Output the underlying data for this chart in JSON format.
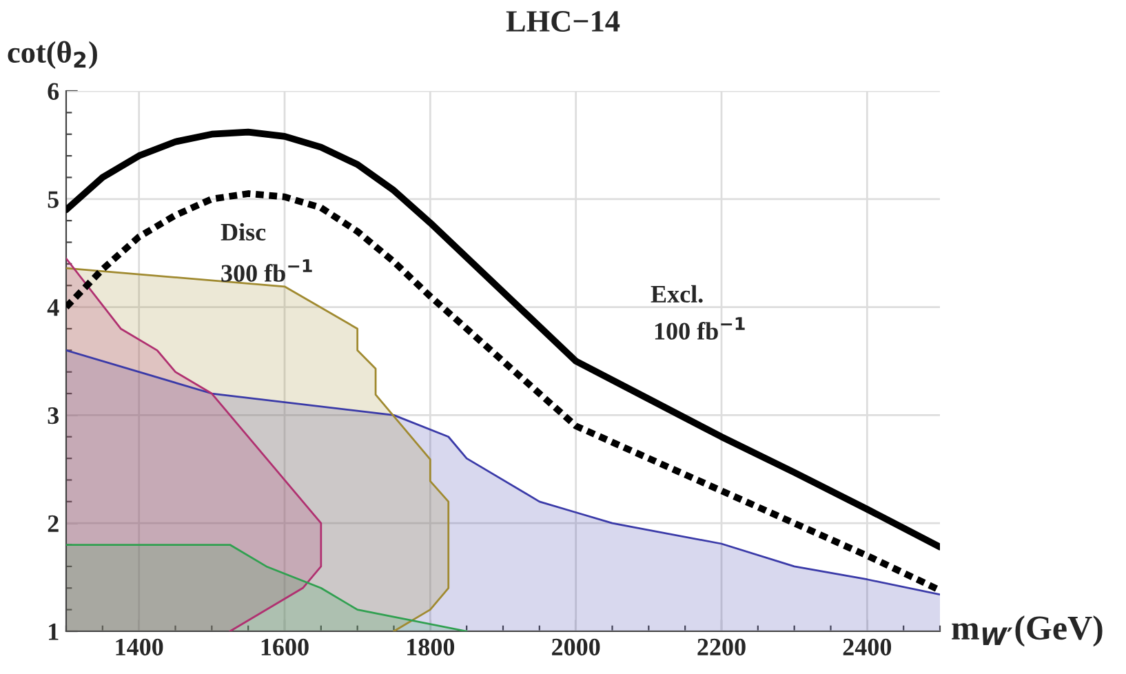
{
  "chart_data": {
    "type": "line",
    "title": "LHC−14",
    "xlabel": "m$_{W′}$(GeV)",
    "ylabel": "cot(θ$_{2}$)",
    "xlim": [
      1300,
      2500
    ],
    "ylim": [
      1,
      6
    ],
    "xticks": [
      {
        "value": 1300,
        "label": null
      },
      {
        "value": 1350,
        "label": null
      },
      1400,
      {
        "value": 1450,
        "label": null
      },
      {
        "value": 1500,
        "label": null
      },
      {
        "value": 1550,
        "label": null
      },
      1600,
      {
        "value": 1650,
        "label": null
      },
      {
        "value": 1700,
        "label": null
      },
      {
        "value": 1750,
        "label": null
      },
      1800,
      {
        "value": 1850,
        "label": null
      },
      {
        "value": 1900,
        "label": null
      },
      {
        "value": 1950,
        "label": null
      },
      2000,
      {
        "value": 2050,
        "label": null
      },
      {
        "value": 2100,
        "label": null
      },
      {
        "value": 2150,
        "label": null
      },
      2200,
      {
        "value": 2250,
        "label": null
      },
      {
        "value": 2300,
        "label": null
      },
      {
        "value": 2350,
        "label": null
      },
      2400,
      {
        "value": 2450,
        "label": null
      },
      {
        "value": 2500,
        "label": null
      }
    ],
    "yticks": [
      1,
      {
        "value": 1.2,
        "label": null
      },
      {
        "value": 1.4,
        "label": null
      },
      {
        "value": 1.6,
        "label": null
      },
      {
        "value": 1.8,
        "label": null
      },
      2,
      {
        "value": 2.2,
        "label": null
      },
      {
        "value": 2.4,
        "label": null
      },
      {
        "value": 2.6,
        "label": null
      },
      {
        "value": 2.8,
        "label": null
      },
      3,
      {
        "value": 3.2,
        "label": null
      },
      {
        "value": 3.4,
        "label": null
      },
      {
        "value": 3.6,
        "label": null
      },
      {
        "value": 3.8,
        "label": null
      },
      4,
      {
        "value": 4.2,
        "label": null
      },
      {
        "value": 4.4,
        "label": null
      },
      {
        "value": 4.6,
        "label": null
      },
      {
        "value": 4.8,
        "label": null
      },
      5,
      {
        "value": 5.2,
        "label": null
      },
      {
        "value": 5.4,
        "label": null
      },
      {
        "value": 5.6,
        "label": null
      },
      {
        "value": 5.8,
        "label": null
      },
      6
    ],
    "grid": true,
    "legend": false,
    "series": [
      {
        "type": "area",
        "color": "#3a3aa8",
        "x": [
          1300,
          1400,
          1500,
          1750,
          1825,
          1850,
          1950,
          2000,
          2050,
          2200,
          2300,
          2400,
          2500
        ],
        "values": [
          3.6,
          3.4,
          3.2,
          3.0,
          2.8,
          2.6,
          2.2,
          2.1,
          2.0,
          1.81,
          1.6,
          1.48,
          1.34
        ]
      },
      {
        "type": "area",
        "color": "#a08a30",
        "x": [
          1300,
          1600,
          1700,
          1700,
          1725,
          1725,
          1800,
          1800,
          1825,
          1825,
          1800,
          1750
        ],
        "values": [
          4.36,
          4.19,
          3.8,
          3.6,
          3.43,
          3.19,
          2.59,
          2.39,
          2.2,
          1.4,
          1.2,
          1.0
        ]
      },
      {
        "type": "area",
        "color": "#b03070",
        "x": [
          1300,
          1375,
          1425,
          1450,
          1500,
          1650,
          1650,
          1625,
          1525
        ],
        "values": [
          4.45,
          3.8,
          3.6,
          3.4,
          3.2,
          2.0,
          1.6,
          1.4,
          1.0
        ]
      },
      {
        "type": "area",
        "color": "#30a050",
        "x": [
          1300,
          1525,
          1575,
          1650,
          1700,
          1850
        ],
        "values": [
          1.8,
          1.8,
          1.6,
          1.4,
          1.2,
          1.0
        ]
      },
      {
        "color": "#000000",
        "line_style": "solid",
        "x": [
          1300,
          1350,
          1400,
          1450,
          1500,
          1550,
          1600,
          1650,
          1700,
          1750,
          1800,
          2000,
          2100,
          2200,
          2300,
          2400,
          2500
        ],
        "values": [
          4.9,
          5.2,
          5.4,
          5.53,
          5.6,
          5.62,
          5.58,
          5.48,
          5.32,
          5.08,
          4.78,
          3.5,
          3.15,
          2.8,
          2.47,
          2.13,
          1.78
        ]
      },
      {
        "color": "#000000",
        "line_style": "dashed",
        "x": [
          1300,
          1350,
          1400,
          1450,
          1500,
          1550,
          1600,
          1650,
          1700,
          1750,
          1800,
          2000,
          2100,
          2200,
          2300,
          2400,
          2500
        ],
        "values": [
          4.0,
          4.35,
          4.65,
          4.85,
          5.0,
          5.05,
          5.02,
          4.92,
          4.7,
          4.42,
          4.1,
          2.9,
          2.6,
          2.3,
          2.0,
          1.7,
          1.38
        ]
      }
    ],
    "annotations": [
      "Disc",
      "300 fb$^{−1}$",
      "Excl.",
      "100 fb$^{−1}$"
    ]
  }
}
